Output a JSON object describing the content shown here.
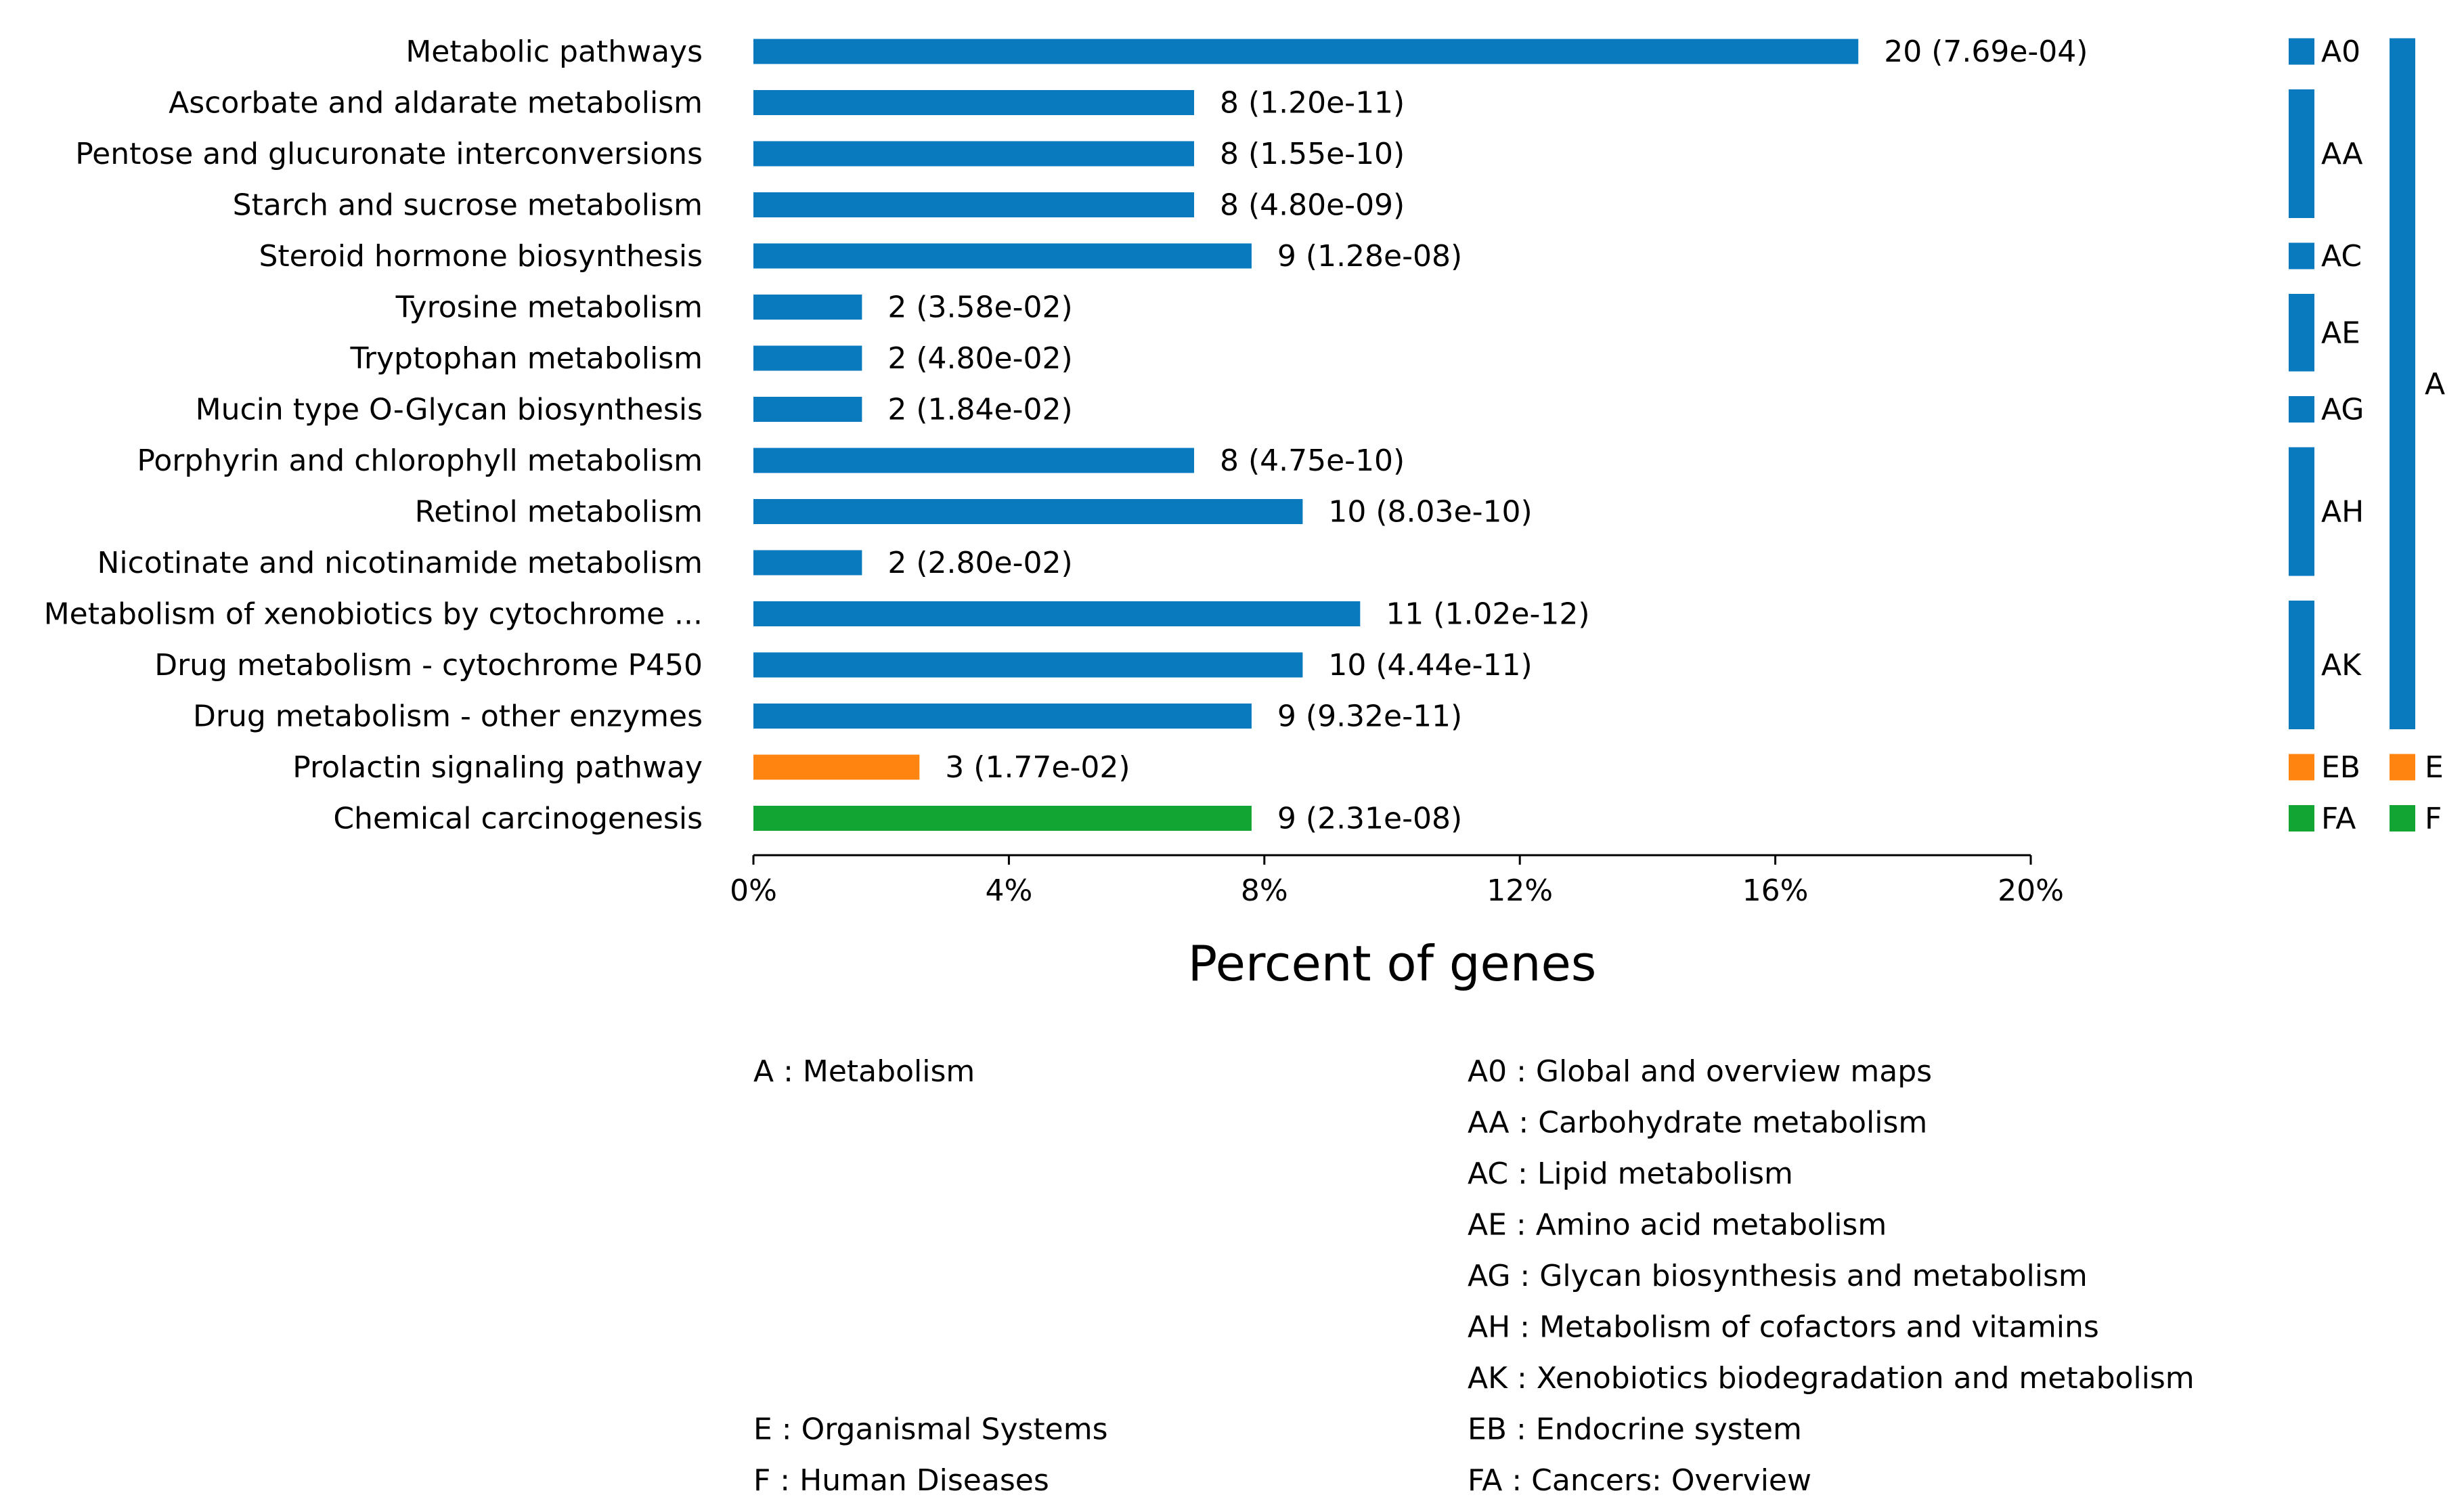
{
  "chart_data": {
    "type": "bar",
    "orientation": "horizontal",
    "xlabel": "Percent of genes",
    "xlim": [
      0,
      20
    ],
    "xticks": [
      0,
      4,
      8,
      12,
      16,
      20
    ],
    "xtick_labels": [
      "0%",
      "4%",
      "8%",
      "12%",
      "16%",
      "20%"
    ],
    "grid": false,
    "colors": {
      "A": "#0a7abf",
      "E": "#ff8410",
      "F": "#13a534"
    },
    "bars": [
      {
        "category": "Metabolic pathways",
        "percent": 17.3,
        "label": "20 (7.69e-04)",
        "class": "A",
        "subclass": "A0"
      },
      {
        "category": "Ascorbate and aldarate metabolism",
        "percent": 6.9,
        "label": "8 (1.20e-11)",
        "class": "A",
        "subclass": "AA"
      },
      {
        "category": "Pentose and glucuronate interconversions",
        "percent": 6.9,
        "label": "8 (1.55e-10)",
        "class": "A",
        "subclass": "AA"
      },
      {
        "category": "Starch and sucrose metabolism",
        "percent": 6.9,
        "label": "8 (4.80e-09)",
        "class": "A",
        "subclass": "AA"
      },
      {
        "category": "Steroid hormone biosynthesis",
        "percent": 7.8,
        "label": "9 (1.28e-08)",
        "class": "A",
        "subclass": "AC"
      },
      {
        "category": "Tyrosine metabolism",
        "percent": 1.7,
        "label": "2 (3.58e-02)",
        "class": "A",
        "subclass": "AE"
      },
      {
        "category": "Tryptophan metabolism",
        "percent": 1.7,
        "label": "2 (4.80e-02)",
        "class": "A",
        "subclass": "AE"
      },
      {
        "category": "Mucin type O-Glycan biosynthesis",
        "percent": 1.7,
        "label": "2 (1.84e-02)",
        "class": "A",
        "subclass": "AG"
      },
      {
        "category": "Porphyrin and chlorophyll metabolism",
        "percent": 6.9,
        "label": "8 (4.75e-10)",
        "class": "A",
        "subclass": "AH"
      },
      {
        "category": "Retinol metabolism",
        "percent": 8.6,
        "label": "10 (8.03e-10)",
        "class": "A",
        "subclass": "AH"
      },
      {
        "category": "Nicotinate and nicotinamide metabolism",
        "percent": 1.7,
        "label": "2 (2.80e-02)",
        "class": "A",
        "subclass": "AH"
      },
      {
        "category": "Metabolism of xenobiotics by cytochrome ...",
        "percent": 9.5,
        "label": "11 (1.02e-12)",
        "class": "A",
        "subclass": "AK"
      },
      {
        "category": "Drug metabolism - cytochrome P450",
        "percent": 8.6,
        "label": "10 (4.44e-11)",
        "class": "A",
        "subclass": "AK"
      },
      {
        "category": "Drug metabolism - other enzymes",
        "percent": 7.8,
        "label": "9 (9.32e-11)",
        "class": "A",
        "subclass": "AK"
      },
      {
        "category": "Prolactin signaling pathway",
        "percent": 2.6,
        "label": "3 (1.77e-02)",
        "class": "E",
        "subclass": "EB"
      },
      {
        "category": "Chemical carcinogenesis",
        "percent": 7.8,
        "label": "9 (2.31e-08)",
        "class": "F",
        "subclass": "FA"
      }
    ],
    "subclass_groups": [
      {
        "code": "A0",
        "class": "A"
      },
      {
        "code": "AA",
        "class": "A"
      },
      {
        "code": "AC",
        "class": "A"
      },
      {
        "code": "AE",
        "class": "A"
      },
      {
        "code": "AG",
        "class": "A"
      },
      {
        "code": "AH",
        "class": "A"
      },
      {
        "code": "AK",
        "class": "A"
      },
      {
        "code": "EB",
        "class": "E"
      },
      {
        "code": "FA",
        "class": "F"
      }
    ],
    "class_groups": [
      {
        "code": "A",
        "class": "A"
      },
      {
        "code": "E",
        "class": "E"
      },
      {
        "code": "F",
        "class": "F"
      }
    ],
    "legend_left": [
      {
        "text": "A : Metabolism",
        "row": 0
      },
      {
        "text": "E : Organismal Systems",
        "row": 7
      },
      {
        "text": "F : Human Diseases",
        "row": 8
      }
    ],
    "legend_right": [
      {
        "text": "A0 : Global and overview maps",
        "row": 0
      },
      {
        "text": "AA : Carbohydrate metabolism",
        "row": 1
      },
      {
        "text": "AC : Lipid metabolism",
        "row": 2
      },
      {
        "text": "AE : Amino acid metabolism",
        "row": 3
      },
      {
        "text": "AG : Glycan biosynthesis and metabolism",
        "row": 4
      },
      {
        "text": "AH : Metabolism of cofactors and vitamins",
        "row": 5
      },
      {
        "text": "AK : Xenobiotics biodegradation and metabolism",
        "row": 6
      },
      {
        "text": "EB : Endocrine system",
        "row": 7
      },
      {
        "text": "FA : Cancers: Overview",
        "row": 8
      }
    ]
  }
}
